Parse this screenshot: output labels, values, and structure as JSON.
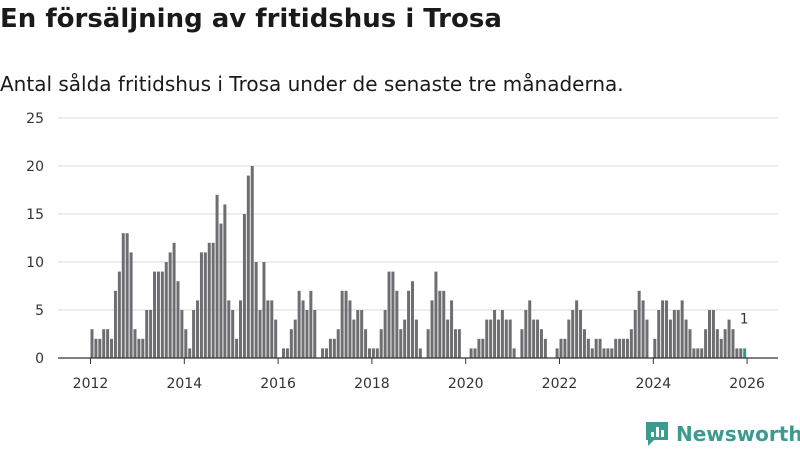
{
  "colors": {
    "bar": "#6e6e72",
    "highlight": "#2b9a8f",
    "grid": "#d9d9d9",
    "brand": "#3c9a8f"
  },
  "brand": {
    "name": "Newsworthy",
    "icon": "newsworthy-logo-icon"
  },
  "chart_data": {
    "type": "bar",
    "title": "En försäljning av fritidshus i Trosa",
    "subtitle": "Antal sålda fritidshus i Trosa under de senaste tre månaderna.",
    "xlabel": "",
    "ylabel": "",
    "ylim": [
      0,
      25
    ],
    "y_ticks": [
      0,
      5,
      10,
      15,
      20,
      25
    ],
    "x_tick_labels": [
      "2012",
      "2014",
      "2016",
      "2018",
      "2020",
      "2022",
      "2024",
      "2026"
    ],
    "x_tick_years": [
      2012,
      2014,
      2016,
      2018,
      2020,
      2022,
      2024,
      2026
    ],
    "x_start": 2012,
    "x_start_month": 1,
    "grid": true,
    "series": [
      {
        "name": "Sålda fritidshus",
        "values": [
          3,
          2,
          2,
          3,
          3,
          2,
          7,
          9,
          13,
          13,
          11,
          3,
          2,
          2,
          5,
          5,
          9,
          9,
          9,
          10,
          11,
          12,
          8,
          5,
          3,
          1,
          5,
          6,
          11,
          11,
          12,
          12,
          17,
          14,
          16,
          6,
          5,
          2,
          6,
          15,
          19,
          20,
          10,
          5,
          10,
          6,
          6,
          4,
          0,
          1,
          1,
          3,
          4,
          7,
          6,
          5,
          7,
          5,
          0,
          1,
          1,
          2,
          2,
          3,
          7,
          7,
          6,
          4,
          5,
          5,
          3,
          1,
          1,
          1,
          3,
          5,
          9,
          9,
          7,
          3,
          4,
          7,
          8,
          4,
          1,
          0,
          3,
          6,
          9,
          7,
          7,
          4,
          6,
          3,
          3,
          0,
          0,
          1,
          1,
          2,
          2,
          4,
          4,
          5,
          4,
          5,
          4,
          4,
          1,
          0,
          3,
          5,
          6,
          4,
          4,
          3,
          2,
          0,
          0,
          1,
          2,
          2,
          4,
          5,
          6,
          5,
          3,
          2,
          1,
          2,
          2,
          1,
          1,
          1,
          2,
          2,
          2,
          2,
          3,
          5,
          7,
          6,
          4,
          0,
          2,
          5,
          6,
          6,
          4,
          5,
          5,
          6,
          4,
          3,
          1,
          1,
          1,
          3,
          5,
          5,
          3,
          2,
          3,
          4,
          3,
          1,
          1,
          1
        ],
        "highlight_last": true
      }
    ],
    "annotations": [
      {
        "text": "1",
        "target": "last-bar"
      }
    ]
  }
}
